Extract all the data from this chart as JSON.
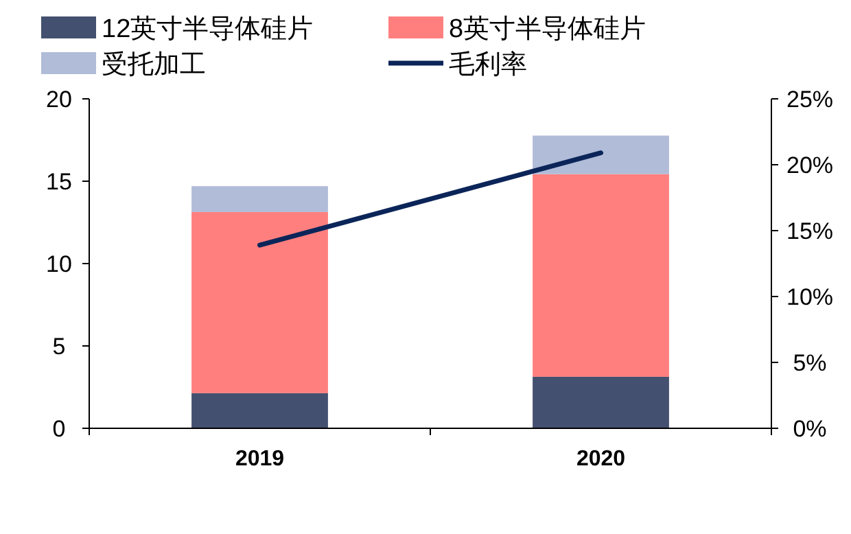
{
  "chart_data": {
    "type": "bar",
    "stacked": true,
    "categories": [
      "2019",
      "2020"
    ],
    "series": [
      {
        "name": "12英寸半导体硅片",
        "color": "#44506f",
        "values": [
          2.13,
          3.13
        ]
      },
      {
        "name": "8英寸半导体硅片",
        "color": "#ff7f7f",
        "values": [
          11.0,
          12.3
        ]
      },
      {
        "name": "受托加工",
        "color": "#b0bcd8",
        "values": [
          1.57,
          2.34
        ]
      },
      {
        "name": "毛利率",
        "type": "line",
        "axis": "y2",
        "color": "#0b2559",
        "values": [
          13.9,
          20.9
        ]
      }
    ],
    "ylim": [
      0,
      20
    ],
    "yticks": [
      0,
      5,
      10,
      15,
      20
    ],
    "y2lim": [
      0,
      25
    ],
    "y2ticks": [
      {
        "value": 0,
        "label": "0%"
      },
      {
        "value": 5,
        "label": "5%"
      },
      {
        "value": 10,
        "label": "10%"
      },
      {
        "value": 15,
        "label": "15%"
      },
      {
        "value": 20,
        "label": "20%"
      },
      {
        "value": 25,
        "label": "25%"
      }
    ],
    "legend": "top",
    "grid": false
  }
}
